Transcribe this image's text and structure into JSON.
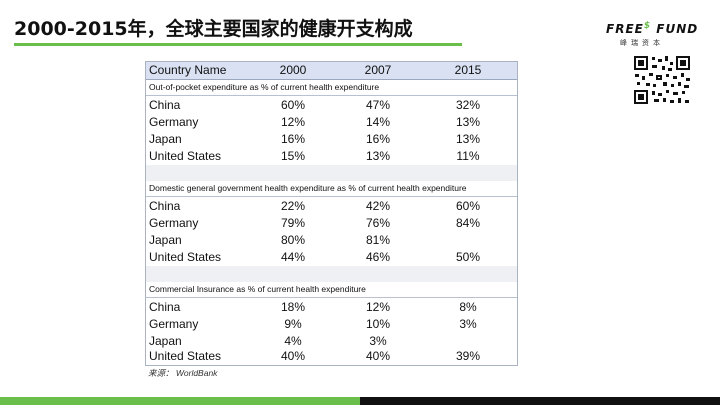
{
  "title": "2000-2015年，全球主要国家的健康开支构成",
  "logo": {
    "brand_left": "FREE",
    "brand_symbol": "$",
    "brand_right": "FUND",
    "sub": "峰瑞资本"
  },
  "table": {
    "headers": [
      "Country Name",
      "2000",
      "2007",
      "2015"
    ],
    "sections": [
      {
        "title": "Out-of-pocket expenditure as % of current health expenditure",
        "rows": [
          [
            "China",
            "60%",
            "47%",
            "32%"
          ],
          [
            "Germany",
            "12%",
            "14%",
            "13%"
          ],
          [
            "Japan",
            "16%",
            "16%",
            "13%"
          ],
          [
            "United States",
            "15%",
            "13%",
            "11%"
          ]
        ]
      },
      {
        "title": "Domestic general government health expenditure as % of current health expenditure",
        "rows": [
          [
            "China",
            "22%",
            "42%",
            "60%"
          ],
          [
            "Germany",
            "79%",
            "76%",
            "84%"
          ],
          [
            "Japan",
            "80%",
            "81%",
            ""
          ],
          [
            "United States",
            "44%",
            "46%",
            "50%"
          ]
        ]
      },
      {
        "title": "Commercial Insurance as % of current health expenditure",
        "rows": [
          [
            "China",
            "18%",
            "12%",
            "8%"
          ],
          [
            "Germany",
            "9%",
            "10%",
            "3%"
          ],
          [
            "Japan",
            "4%",
            "3%",
            ""
          ],
          [
            "United States",
            "40%",
            "40%",
            "39%"
          ]
        ]
      }
    ]
  },
  "source": "来源： WorldBank",
  "colors": {
    "accent": "#6abf4b",
    "header_bg": "#d9e1f2",
    "bottom_dark": "#111111"
  }
}
